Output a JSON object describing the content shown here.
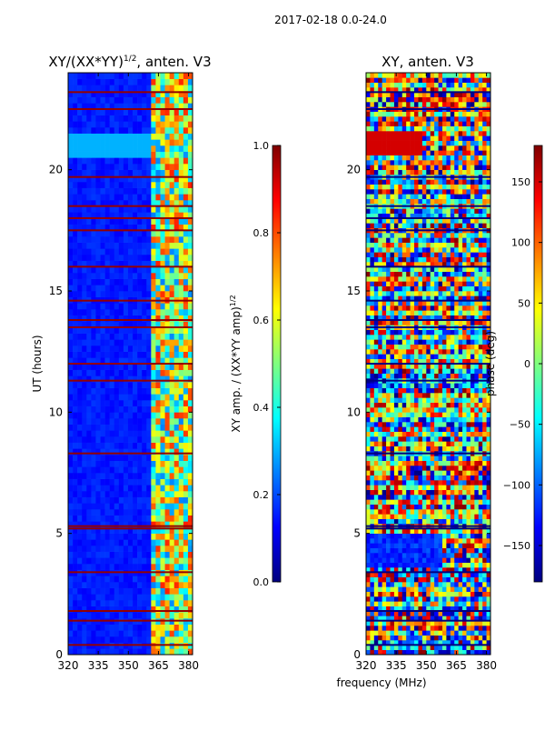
{
  "suptitle": "2017-02-18 0.0-24.0",
  "colors": {
    "background": "#ffffff",
    "jet": [
      "#00007f",
      "#0000ff",
      "#007fff",
      "#00ffff",
      "#7fff7f",
      "#ffff00",
      "#ff7f00",
      "#ff0000",
      "#7f0000"
    ]
  },
  "chart_data": [
    {
      "type": "heatmap",
      "title": "XY/(XX*YY)",
      "title_sup": "1/2",
      "title_suffix": ", anten. V3",
      "xlabel": "",
      "ylabel": "UT (hours)",
      "xlim": [
        320,
        382
      ],
      "ylim": [
        0,
        24
      ],
      "xticks": [
        320,
        335,
        350,
        365,
        380
      ],
      "yticks": [
        0,
        5,
        10,
        15,
        20
      ],
      "colorbar": {
        "label": "XY amp. / (XX*YY amp)",
        "label_sup": "1/2",
        "range": [
          0.0,
          1.0
        ],
        "ticks": [
          "0.0",
          "0.2",
          "0.4",
          "0.6",
          "0.8",
          "1.0"
        ]
      },
      "description_values": {
        "low_band_mhz": [
          320,
          360
        ],
        "low_band_level": 0.15,
        "high_band_mhz": [
          360,
          382
        ],
        "high_band_level": 0.55,
        "bright_block_hours": [
          20.5,
          21.3
        ],
        "bright_block_level": 0.3,
        "flagged_hours": [
          0.4,
          1.4,
          1.8,
          3.4,
          5.2,
          5.3,
          8.3,
          11.3,
          12.0,
          13.5,
          13.8,
          14.6,
          16.0,
          17.5,
          18.0,
          18.5,
          19.7,
          22.5,
          23.2
        ]
      }
    },
    {
      "type": "heatmap",
      "title": "XY, anten. V3",
      "xlabel": "frequency (MHz)",
      "ylabel": "",
      "xlim": [
        320,
        382
      ],
      "ylim": [
        0,
        24
      ],
      "xticks": [
        320,
        335,
        350,
        365,
        380
      ],
      "yticks": [
        0,
        5,
        10,
        15,
        20
      ],
      "colorbar": {
        "label": "phase (deg)",
        "range": [
          -180,
          180
        ],
        "ticks": [
          "150",
          "100",
          "50",
          "0",
          "−50",
          "−100",
          "−150"
        ]
      },
      "description_values": {
        "red_block_hours": [
          20.5,
          21.5
        ],
        "red_block_mhz": [
          320,
          347
        ],
        "red_block_phase": 150,
        "blue_region_hours": [
          3.5,
          5.0
        ],
        "blue_region_mhz": [
          320,
          358
        ],
        "blue_region_phase": -120
      }
    }
  ]
}
